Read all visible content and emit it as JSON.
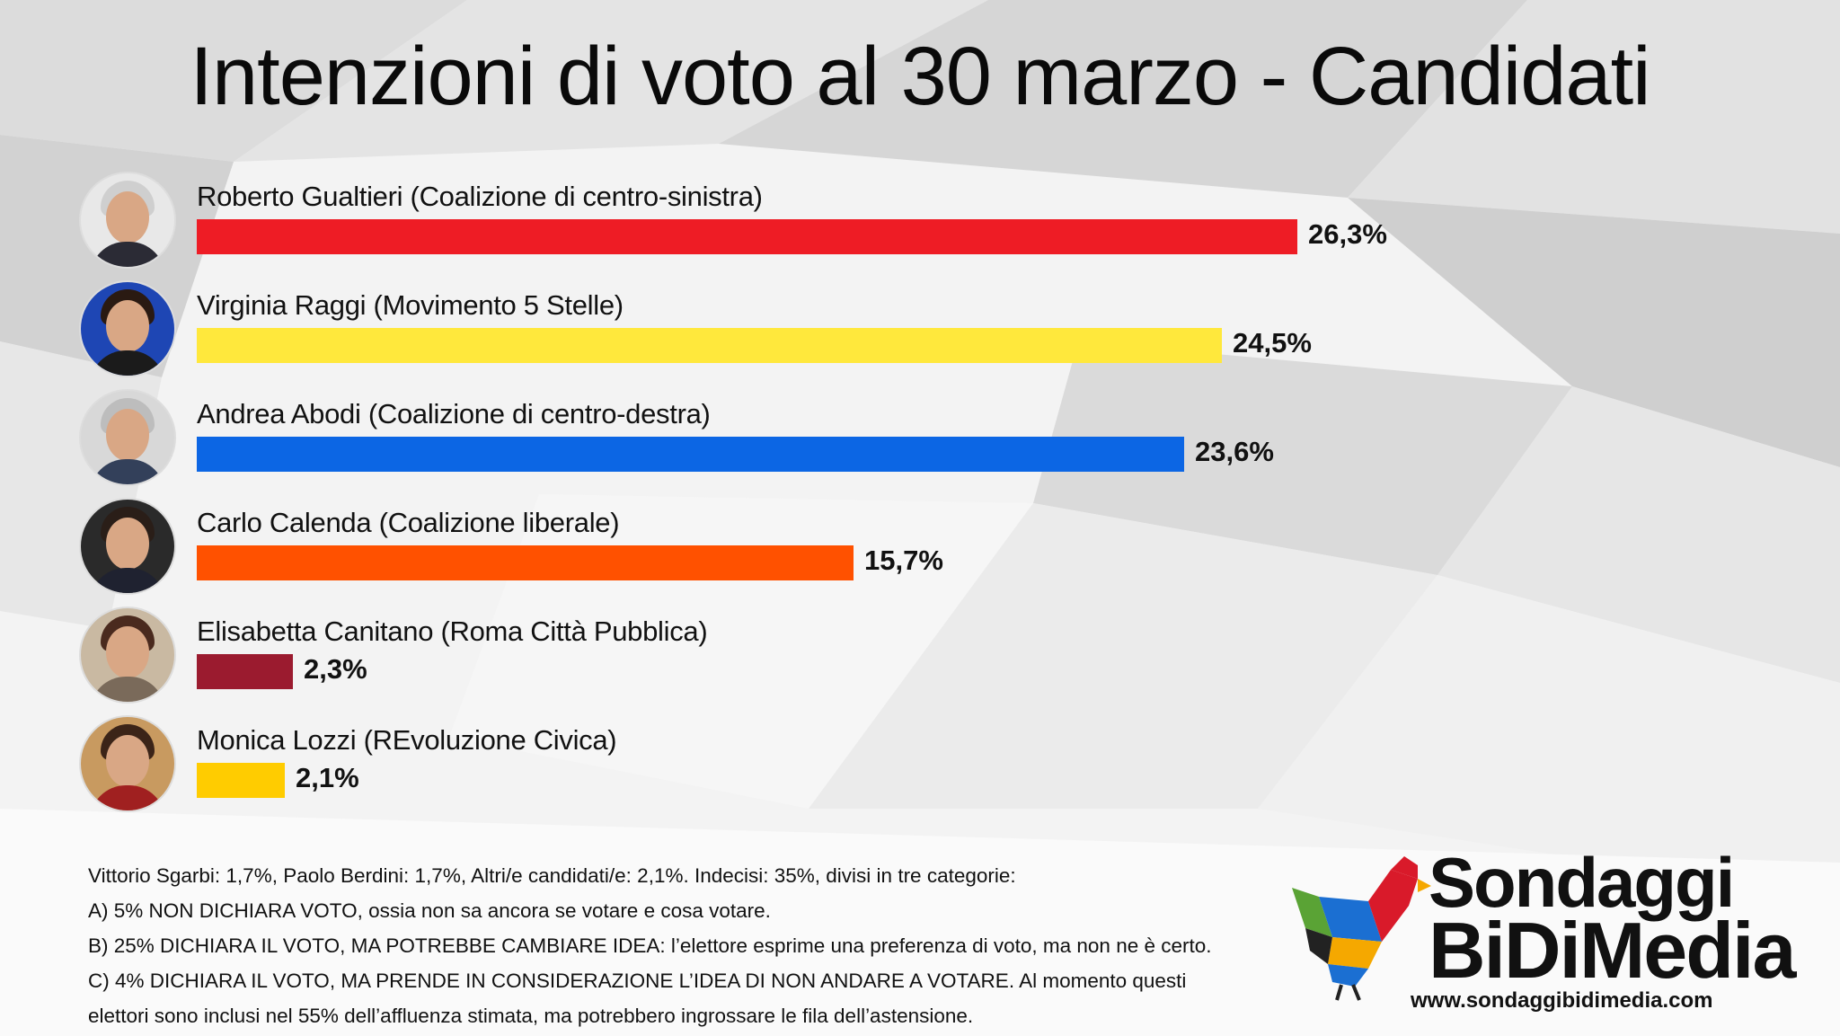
{
  "title": "Intenzioni di voto al 30 marzo - Candidati",
  "chart_data": {
    "type": "bar",
    "orientation": "horizontal",
    "title": "Intenzioni di voto al 30 marzo - Candidati",
    "categories": [
      "Roberto Gualtieri (Coalizione di centro-sinistra)",
      "Virginia Raggi (Movimento 5 Stelle)",
      "Andrea Abodi (Coalizione di centro-destra)",
      "Carlo Calenda (Coalizione liberale)",
      "Elisabetta Canitano (Roma Città Pubblica)",
      "Monica Lozzi (REvoluzione Civica)"
    ],
    "values": [
      26.3,
      24.5,
      23.6,
      15.7,
      2.3,
      2.1
    ],
    "value_labels": [
      "26,3%",
      "24,5%",
      "23,6%",
      "15,7%",
      "2,3%",
      "2,1%"
    ],
    "colors": [
      "#ee1c25",
      "#ffe83c",
      "#0c66e4",
      "#ff5100",
      "#9b1b2f",
      "#ffcc00"
    ],
    "avatar_icons": [
      "portrait-photo",
      "portrait-photo",
      "portrait-photo",
      "portrait-photo",
      "portrait-photo",
      "portrait-photo"
    ],
    "xlabel": "",
    "ylabel": "",
    "xlim": [
      0,
      26.3
    ],
    "grid": false
  },
  "notes": [
    "Vittorio Sgarbi: 1,7%, Paolo Berdini: 1,7%, Altri/e candidati/e: 2,1%. Indecisi: 35%, divisi in tre categorie:",
    "A) 5% NON DICHIARA VOTO, ossia non sa ancora se votare e cosa votare.",
    "B) 25% DICHIARA IL VOTO, MA POTREBBE CAMBIARE IDEA: l’elettore esprime una preferenza di voto, ma non ne è certo.",
    "C) 4% DICHIARA IL VOTO, MA PRENDE IN CONSIDERAZIONE L’IDEA DI NON ANDARE A VOTARE. Al momento questi",
    "elettori sono inclusi nel 55% dell’affluenza stimata, ma potrebbero ingrossare le fila dell’astensione."
  ],
  "logo": {
    "line1": "Sondaggi",
    "line2": "BiDiMedia",
    "url": "www.sondaggibidimedia.com",
    "icon": "rooster-logo-icon"
  }
}
